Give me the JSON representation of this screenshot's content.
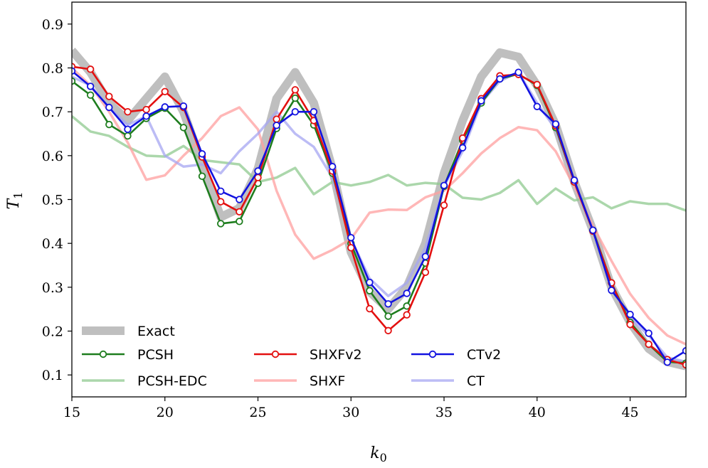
{
  "chart_data": {
    "type": "line",
    "xlabel": "k",
    "xlabel_sub": "0",
    "ylabel": "T",
    "ylabel_sub": "1",
    "xlim": [
      15,
      48
    ],
    "ylim": [
      0.05,
      0.95
    ],
    "xticks": [
      15,
      20,
      25,
      30,
      35,
      40,
      45
    ],
    "yticks": [
      0.1,
      0.2,
      0.3,
      0.4,
      0.5,
      0.6,
      0.7,
      0.8,
      0.9
    ],
    "x": [
      15,
      16,
      17,
      18,
      19,
      20,
      21,
      22,
      23,
      24,
      25,
      26,
      27,
      28,
      29,
      30,
      31,
      32,
      33,
      34,
      35,
      36,
      37,
      38,
      39,
      40,
      41,
      42,
      43,
      44,
      45,
      46,
      47,
      48
    ],
    "grid": false,
    "legend_position": "bottom-left",
    "series": [
      {
        "name": "Exact",
        "color": "#bfbfbf",
        "style": "thick",
        "markers": false,
        "values": [
          0.84,
          0.79,
          0.72,
          0.68,
          0.73,
          0.78,
          0.7,
          0.58,
          0.46,
          0.48,
          0.57,
          0.73,
          0.79,
          0.72,
          0.57,
          0.38,
          0.29,
          0.25,
          0.3,
          0.4,
          0.56,
          0.68,
          0.78,
          0.835,
          0.825,
          0.76,
          0.67,
          0.54,
          0.43,
          0.3,
          0.22,
          0.16,
          0.13,
          0.12
        ]
      },
      {
        "name": "PCSH-EDC",
        "color": "#8fc98f",
        "style": "faded",
        "markers": false,
        "values": [
          0.69,
          0.655,
          0.645,
          0.62,
          0.6,
          0.598,
          0.622,
          0.59,
          0.585,
          0.58,
          0.54,
          0.55,
          0.572,
          0.512,
          0.54,
          0.532,
          0.54,
          0.556,
          0.532,
          0.538,
          0.535,
          0.504,
          0.5,
          0.515,
          0.544,
          0.49,
          0.525,
          0.498,
          0.505,
          0.48,
          0.496,
          0.49,
          0.49,
          0.475
        ]
      },
      {
        "name": "SHXF",
        "color": "#ff9f9f",
        "style": "faded",
        "markers": false,
        "values": [
          0.8,
          0.76,
          0.7,
          0.63,
          0.545,
          0.555,
          0.6,
          0.64,
          0.69,
          0.71,
          0.66,
          0.52,
          0.42,
          0.365,
          0.385,
          0.41,
          0.47,
          0.477,
          0.476,
          0.505,
          0.52,
          0.56,
          0.605,
          0.64,
          0.665,
          0.658,
          0.61,
          0.53,
          0.44,
          0.36,
          0.285,
          0.23,
          0.19,
          0.17
        ]
      },
      {
        "name": "CT",
        "color": "#a6a6f2",
        "style": "faded",
        "markers": false,
        "values": [
          0.78,
          0.76,
          0.71,
          0.67,
          0.69,
          0.6,
          0.575,
          0.58,
          0.56,
          0.61,
          0.65,
          0.7,
          0.65,
          0.62,
          0.55,
          0.41,
          0.32,
          0.28,
          0.31,
          0.39,
          0.53,
          0.61,
          0.72,
          0.77,
          0.79,
          0.72,
          0.66,
          0.54,
          0.43,
          0.3,
          0.23,
          0.19,
          0.14,
          0.13
        ]
      },
      {
        "name": "PCSH",
        "color": "#1e7d1e",
        "style": "solid",
        "markers": true,
        "values": [
          0.77,
          0.738,
          0.671,
          0.645,
          0.685,
          0.708,
          0.664,
          0.553,
          0.445,
          0.45,
          0.537,
          0.662,
          0.731,
          0.67,
          0.56,
          0.4,
          0.292,
          0.234,
          0.257,
          0.355,
          0.53,
          0.635,
          0.72,
          0.775,
          0.786,
          0.76,
          0.664,
          0.54,
          0.43,
          0.31,
          0.22,
          0.17,
          0.13,
          0.127
        ]
      },
      {
        "name": "SHXFv2",
        "color": "#e31010",
        "style": "solid",
        "markers": true,
        "values": [
          0.803,
          0.797,
          0.735,
          0.7,
          0.705,
          0.746,
          0.71,
          0.597,
          0.495,
          0.472,
          0.55,
          0.683,
          0.75,
          0.68,
          0.565,
          0.39,
          0.251,
          0.201,
          0.237,
          0.334,
          0.487,
          0.64,
          0.73,
          0.782,
          0.785,
          0.762,
          0.668,
          0.54,
          0.428,
          0.31,
          0.215,
          0.17,
          0.135,
          0.123
        ]
      },
      {
        "name": "CTv2",
        "color": "#1212e0",
        "style": "solid",
        "markers": true,
        "values": [
          0.793,
          0.758,
          0.71,
          0.66,
          0.69,
          0.711,
          0.713,
          0.604,
          0.519,
          0.5,
          0.565,
          0.669,
          0.7,
          0.7,
          0.575,
          0.413,
          0.311,
          0.262,
          0.286,
          0.37,
          0.532,
          0.618,
          0.725,
          0.775,
          0.79,
          0.712,
          0.672,
          0.544,
          0.43,
          0.293,
          0.238,
          0.195,
          0.129,
          0.155
        ]
      }
    ],
    "legend": [
      {
        "label": "Exact",
        "series": "Exact"
      },
      {
        "label": "PCSH",
        "series": "PCSH"
      },
      {
        "label": "SHXFv2",
        "series": "SHXFv2"
      },
      {
        "label": "CTv2",
        "series": "CTv2"
      },
      {
        "label": "PCSH-EDC",
        "series": "PCSH-EDC"
      },
      {
        "label": "SHXF",
        "series": "SHXF"
      },
      {
        "label": "CT",
        "series": "CT"
      }
    ]
  }
}
